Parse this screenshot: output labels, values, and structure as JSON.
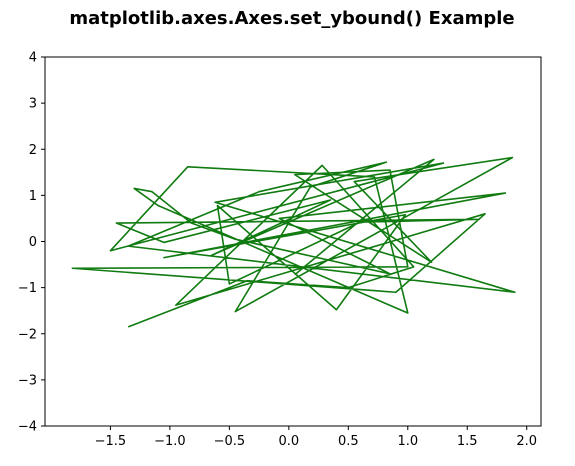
{
  "chart_data": {
    "type": "line",
    "title": "matplotlib.axes.Axes.set_ybound() Example",
    "xlabel": "",
    "ylabel": "",
    "xlim": [
      -2.05,
      2.12
    ],
    "ylim": [
      -4,
      4
    ],
    "xticks": [
      -1.5,
      -1.0,
      -0.5,
      0.0,
      0.5,
      1.0,
      1.5,
      2.0
    ],
    "xtick_labels": [
      "−1.5",
      "−1.0",
      "−0.5",
      "0.0",
      "0.5",
      "1.0",
      "1.5",
      "2.0"
    ],
    "yticks": [
      -4,
      -3,
      -2,
      -1,
      0,
      1,
      2,
      3,
      4
    ],
    "ytick_labels": [
      "−4",
      "−3",
      "−2",
      "−1",
      "0",
      "1",
      "2",
      "3",
      "4"
    ],
    "grid": false,
    "legend": "none",
    "line_color": "#107b10",
    "series": [
      {
        "x": [
          -1.35,
          -0.35,
          0.5,
          1.05,
          0.28,
          -0.95,
          1.65,
          0.9,
          -1.82,
          1.0,
          0.85,
          0.05,
          1.2,
          0.55,
          1.88,
          -0.45,
          0.18,
          0.82,
          -0.25,
          -1.35,
          1.9,
          -0.62,
          1.3,
          -1.5,
          -0.85,
          0.72,
          1.0,
          -1.1,
          -1.3,
          -1.15,
          -0.82,
          -0.45,
          0.85,
          -0.08,
          1.82,
          -1.05,
          0.98,
          0.4,
          -0.6,
          -0.5,
          0.6,
          1.6,
          -1.45,
          -1.05,
          0.35,
          -0.65,
          1.22,
          0.05
        ],
        "y": [
          -1.85,
          -0.85,
          -1.0,
          -0.55,
          1.65,
          -1.38,
          0.6,
          -1.1,
          -0.58,
          -0.55,
          1.55,
          1.45,
          -0.45,
          1.3,
          1.82,
          -1.52,
          1.18,
          1.72,
          1.08,
          -0.1,
          -1.1,
          0.85,
          1.7,
          -0.2,
          1.62,
          1.4,
          -1.55,
          0.78,
          1.15,
          1.08,
          0.4,
          0.05,
          -0.7,
          0.5,
          1.05,
          -0.35,
          0.58,
          -1.48,
          0.78,
          -0.92,
          0.42,
          0.48,
          0.4,
          -0.02,
          0.9,
          -0.3,
          1.78,
          -0.72
        ]
      }
    ]
  }
}
